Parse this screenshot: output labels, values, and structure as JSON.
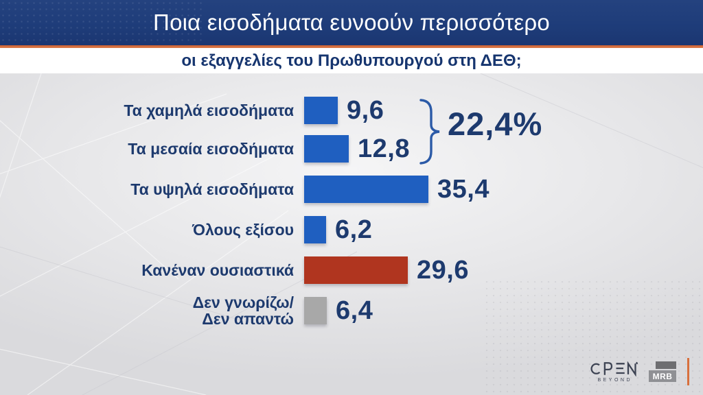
{
  "header": {
    "title": "Ποια εισοδήματα ευνοούν περισσότερο",
    "subtitle": "οι εξαγγελίες του Πρωθυπουργού στη ΔΕΘ;"
  },
  "chart_data": {
    "type": "bar",
    "orientation": "horizontal",
    "title": "Ποια εισοδήματα ευνοούν περισσότερο οι εξαγγελίες του Πρωθυπουργού στη ΔΕΘ;",
    "categories": [
      "Τα χαμηλά εισοδήματα",
      "Τα μεσαία εισοδήματα",
      "Τα υψηλά εισοδήματα",
      "Όλους εξίσου",
      "Κανέναν ουσιαστικά",
      "Δεν γνωρίζω/\nΔεν απαντώ"
    ],
    "values": [
      9.6,
      12.8,
      35.4,
      6.2,
      29.6,
      6.4
    ],
    "value_labels": [
      "9,6",
      "12,8",
      "35,4",
      "6,2",
      "29,6",
      "6,4"
    ],
    "bar_colors": [
      "#1f5fc0",
      "#1f5fc0",
      "#1f5fc0",
      "#1f5fc0",
      "#b0351f",
      "#a8a8a8"
    ],
    "xlim": [
      0,
      40
    ],
    "grid": false,
    "legend": false,
    "annotation": {
      "label": "22,4%",
      "grouped_rows": [
        0,
        1
      ],
      "note": "curly bracket grouping the first two bars, sum of 9,6 and 12,8"
    }
  },
  "footer": {
    "open_logo": {
      "text": "OPEN",
      "tagline": "BEYOND"
    },
    "mrb_logo": {
      "text": "MRB"
    }
  },
  "colors": {
    "title_bar": "#1e3c79",
    "accent_orange": "#dd7340",
    "text_navy": "#1d3a6e",
    "bar_blue": "#1f5fc0",
    "bar_red": "#b0351f",
    "bar_gray": "#a8a8a8",
    "bracket_blue": "#2b5aa7",
    "background": "#e4e4e6"
  }
}
